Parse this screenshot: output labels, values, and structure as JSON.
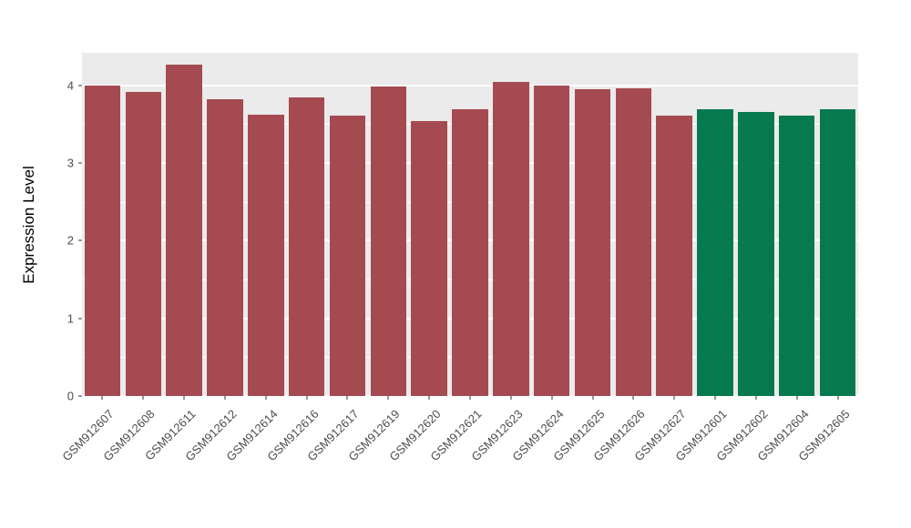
{
  "chart_data": {
    "type": "bar",
    "title": "",
    "xlabel": "",
    "ylabel": "Expression Level",
    "ylim": [
      0,
      4.42
    ],
    "yticks": [
      0,
      1,
      2,
      3,
      4
    ],
    "minor_ticks": [
      0.5,
      1.5,
      2.5,
      3.5
    ],
    "grid": true,
    "legend": false,
    "panel_bg": "#EBEBEB",
    "grid_color": "#FFFFFF",
    "categories": [
      "GSM912607",
      "GSM912608",
      "GSM912611",
      "GSM912612",
      "GSM912614",
      "GSM912616",
      "GSM912617",
      "GSM912619",
      "GSM912620",
      "GSM912621",
      "GSM912623",
      "GSM912624",
      "GSM912625",
      "GSM912626",
      "GSM912627",
      "GSM912601",
      "GSM912602",
      "GSM912604",
      "GSM912605"
    ],
    "values": [
      4.0,
      3.92,
      4.27,
      3.82,
      3.62,
      3.84,
      3.61,
      3.99,
      3.54,
      3.69,
      4.05,
      4.0,
      3.95,
      3.96,
      3.61,
      3.69,
      3.66,
      3.61,
      3.69
    ],
    "groups": [
      "group1",
      "group1",
      "group1",
      "group1",
      "group1",
      "group1",
      "group1",
      "group1",
      "group1",
      "group1",
      "group1",
      "group1",
      "group1",
      "group1",
      "group1",
      "group2",
      "group2",
      "group2",
      "group2"
    ],
    "group_colors": {
      "group1": "#A64A52",
      "group2": "#067A4E"
    }
  }
}
